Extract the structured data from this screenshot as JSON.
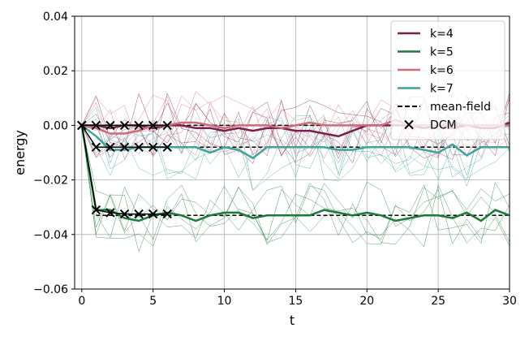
{
  "chart_data": {
    "type": "line",
    "title": "",
    "xlabel": "t",
    "ylabel": "energy",
    "xlim": [
      -0.5,
      30
    ],
    "ylim": [
      -0.06,
      0.04
    ],
    "xticks": [
      0,
      5,
      10,
      15,
      20,
      25,
      30
    ],
    "yticks": [
      0.04,
      0.02,
      0.0,
      -0.02,
      -0.04,
      -0.06
    ],
    "xtick_labels": [
      "0",
      "5",
      "10",
      "15",
      "20",
      "25",
      "30"
    ],
    "ytick_labels": [
      "0.04",
      "0.02",
      "0.00",
      "−0.02",
      "−0.04",
      "−0.06"
    ],
    "grid": true,
    "legend_position": "top-right",
    "x": [
      0,
      1,
      2,
      3,
      4,
      5,
      6,
      7,
      8,
      9,
      10,
      11,
      12,
      13,
      14,
      15,
      16,
      17,
      18,
      19,
      20,
      21,
      22,
      23,
      24,
      25,
      26,
      27,
      28,
      29,
      30
    ],
    "series": [
      {
        "name": "k=4",
        "color": "#7a1f4c",
        "values": [
          0.0,
          0.0,
          -0.001,
          0.0,
          0.0,
          -0.001,
          0.0,
          0.0,
          -0.001,
          -0.001,
          -0.002,
          -0.001,
          -0.002,
          -0.001,
          -0.001,
          -0.002,
          -0.002,
          -0.003,
          -0.004,
          -0.002,
          0.0,
          0.0,
          0.0,
          0.0,
          -0.001,
          0.0,
          -0.001,
          0.0,
          -0.001,
          -0.001,
          0.001
        ]
      },
      {
        "name": "k=5",
        "color": "#1a7a3a",
        "values": [
          0.0,
          -0.031,
          -0.031,
          -0.034,
          -0.035,
          -0.033,
          -0.032,
          -0.033,
          -0.035,
          -0.033,
          -0.032,
          -0.032,
          -0.034,
          -0.033,
          -0.033,
          -0.033,
          -0.033,
          -0.031,
          -0.032,
          -0.033,
          -0.032,
          -0.033,
          -0.035,
          -0.034,
          -0.033,
          -0.033,
          -0.034,
          -0.032,
          -0.035,
          -0.031,
          -0.033
        ]
      },
      {
        "name": "k=6",
        "color": "#cf6a79",
        "values": [
          0.0,
          -0.001,
          -0.003,
          -0.003,
          -0.002,
          0.0,
          0.0,
          0.001,
          0.001,
          0.0,
          -0.001,
          0.0,
          0.0,
          0.0,
          -0.001,
          0.0,
          0.001,
          0.0,
          0.0,
          0.0,
          0.0,
          0.0,
          0.002,
          0.0,
          0.0,
          0.0,
          0.001,
          0.0,
          0.0,
          0.0,
          0.0
        ]
      },
      {
        "name": "k=7",
        "color": "#3fa39a",
        "values": [
          0.0,
          -0.004,
          -0.009,
          -0.009,
          -0.008,
          -0.008,
          -0.008,
          -0.008,
          -0.008,
          -0.01,
          -0.008,
          -0.009,
          -0.012,
          -0.008,
          -0.008,
          -0.008,
          -0.008,
          -0.008,
          -0.009,
          -0.009,
          -0.008,
          -0.008,
          -0.008,
          -0.008,
          -0.009,
          -0.01,
          -0.007,
          -0.011,
          -0.008,
          -0.008,
          -0.008
        ]
      }
    ],
    "mean_field": {
      "name": "mean-field",
      "color": "#000000",
      "levels": [
        0.0,
        -0.008,
        -0.033
      ]
    },
    "dcm": {
      "name": "DCM",
      "color": "#000000",
      "x": [
        0,
        1,
        2,
        3,
        4,
        5,
        6
      ],
      "rows": [
        [
          0.0,
          0.0,
          0.0,
          0.0,
          0.0,
          0.0,
          0.0
        ],
        [
          0.0,
          -0.008,
          -0.008,
          -0.008,
          -0.008,
          -0.008,
          -0.008
        ],
        [
          0.0,
          -0.031,
          -0.032,
          -0.0325,
          -0.0325,
          -0.0325,
          -0.0325
        ]
      ]
    }
  }
}
